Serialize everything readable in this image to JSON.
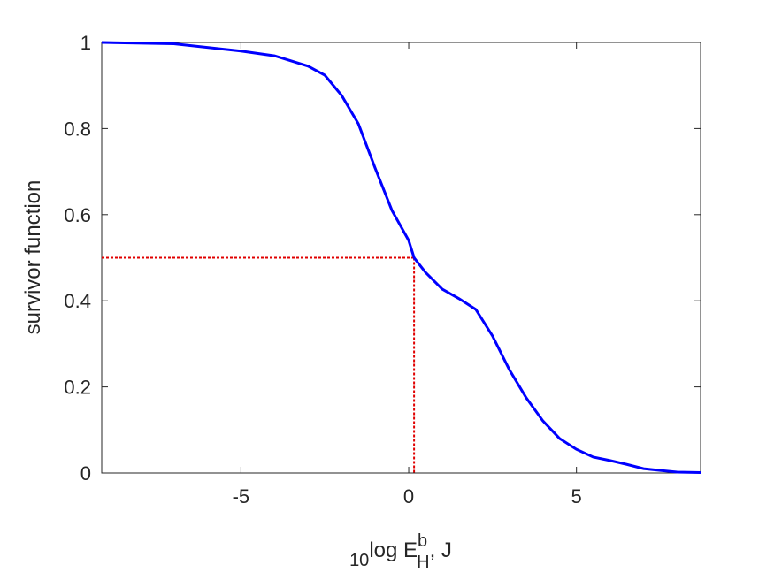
{
  "chart_data": {
    "type": "line",
    "xlabel": {
      "prefix": "10",
      "main": "log E",
      "sub": "H",
      "sup": "b",
      "suffix": ", J"
    },
    "ylabel": "survivor function",
    "x": [
      -9.15,
      -7,
      -5,
      -4,
      -3,
      -2.5,
      -2,
      -1.5,
      -1,
      -0.5,
      0,
      0.16,
      0.5,
      1,
      1.5,
      2,
      2.5,
      3,
      3.5,
      4,
      4.5,
      5,
      5.5,
      6,
      6.5,
      7,
      7.5,
      8,
      8.7
    ],
    "series": [
      {
        "color": "#0000ff",
        "values": [
          1.0,
          0.997,
          0.98,
          0.969,
          0.945,
          0.924,
          0.877,
          0.811,
          0.708,
          0.61,
          0.54,
          0.5,
          0.466,
          0.427,
          0.405,
          0.38,
          0.318,
          0.24,
          0.175,
          0.121,
          0.08,
          0.055,
          0.037,
          0.029,
          0.02,
          0.01,
          0.006,
          0.002,
          0.001
        ]
      }
    ],
    "reference": {
      "x": 0.16,
      "y": 0.5,
      "color": "#e00000"
    },
    "xlim": [
      -9.15,
      8.7
    ],
    "ylim": [
      0,
      1
    ],
    "xticks": [
      -5,
      0,
      5
    ],
    "yticks": [
      0,
      0.2,
      0.4,
      0.6,
      0.8,
      1
    ]
  }
}
